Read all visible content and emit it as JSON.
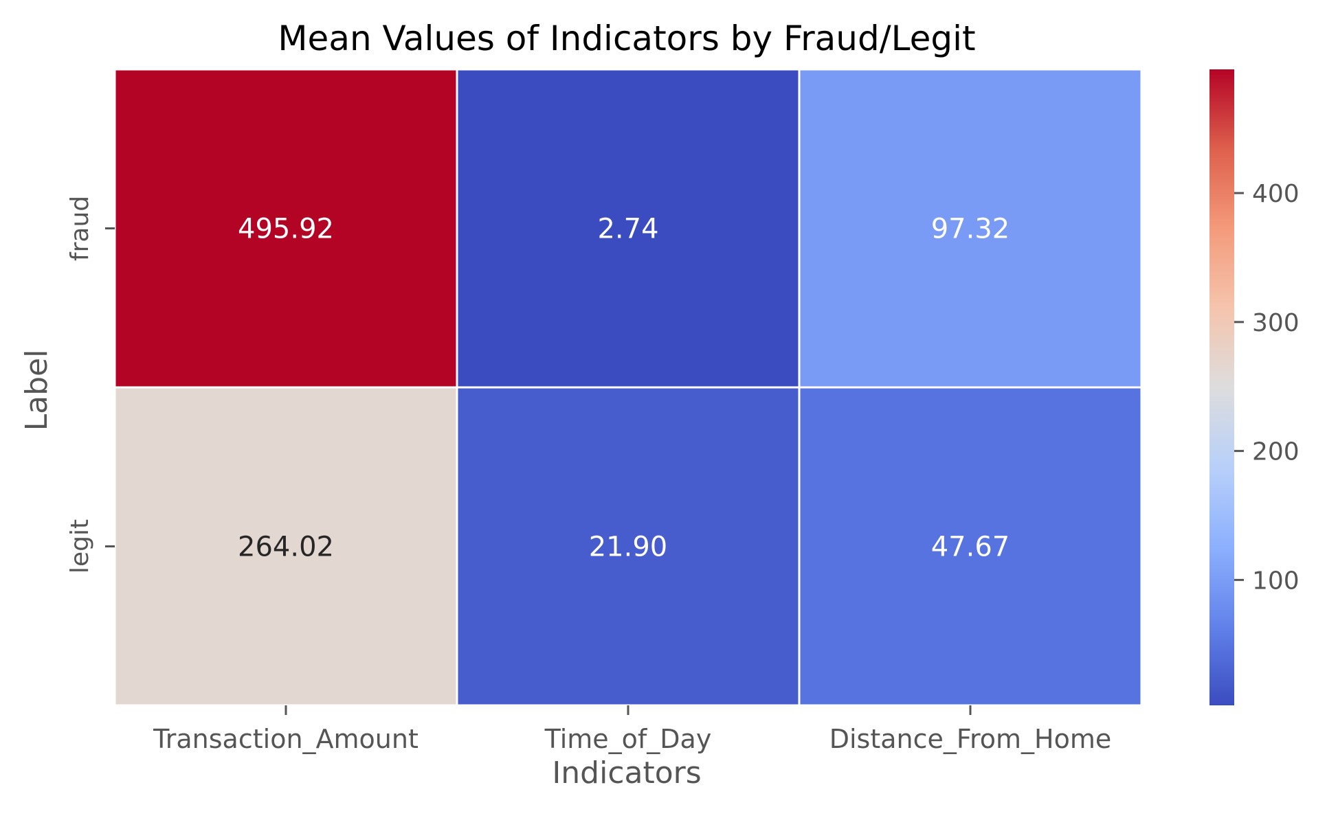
{
  "chart_data": {
    "type": "heatmap",
    "title": "Mean Values of Indicators by Fraud/Legit",
    "xlabel": "Indicators",
    "ylabel": "Label",
    "x_categories": [
      "Transaction_Amount",
      "Time_of_Day",
      "Distance_From_Home"
    ],
    "y_categories": [
      "fraud",
      "legit"
    ],
    "values": [
      [
        495.92,
        2.74,
        97.32
      ],
      [
        264.02,
        21.9,
        47.67
      ]
    ],
    "cell_labels": [
      [
        "495.92",
        "2.74",
        "97.32"
      ],
      [
        "264.02",
        "21.90",
        "47.67"
      ]
    ],
    "colormap": "coolwarm",
    "vmin": 2.74,
    "vmax": 495.92,
    "colorbar_ticks": [
      100,
      200,
      300,
      400
    ],
    "colorbar_tick_labels": [
      "100",
      "200",
      "300",
      "400"
    ],
    "grid": false,
    "colors": {
      "background": "#ffffff",
      "text": "#000000",
      "axis_text": "#555555",
      "cell_divider": "#ffffff"
    }
  }
}
